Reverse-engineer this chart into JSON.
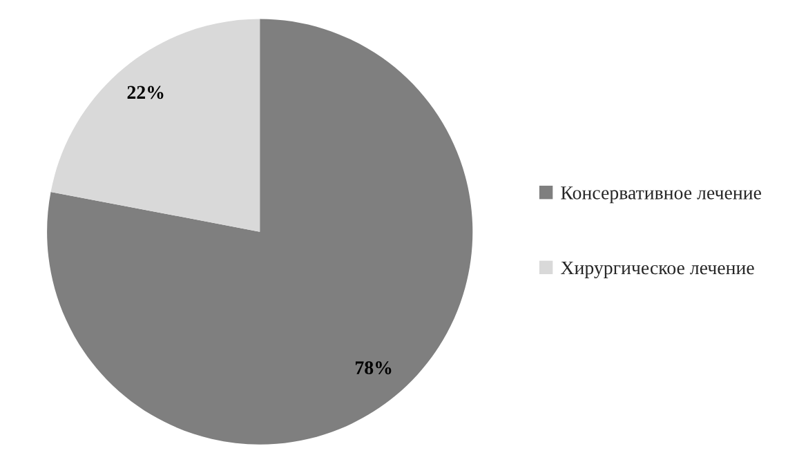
{
  "chart_data": {
    "type": "pie",
    "categories": [
      "Консервативное лечение",
      "Хирургическое лечение"
    ],
    "values": [
      78,
      22
    ],
    "colors": [
      "#7f7f7f",
      "#d9d9d9"
    ],
    "value_labels": [
      "78%",
      "22%"
    ],
    "legend": "right"
  }
}
